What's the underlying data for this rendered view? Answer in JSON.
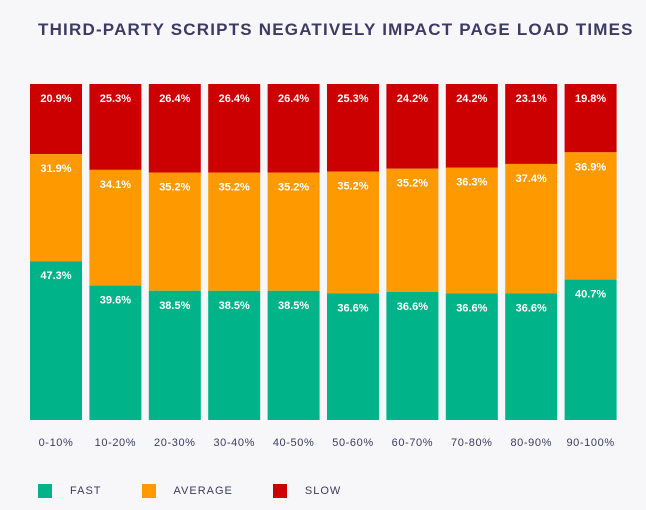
{
  "chart_data": {
    "type": "stacked-bar",
    "title": "THIRD-PARTY SCRIPTS NEGATIVELY IMPACT PAGE LOAD TIMES",
    "categories": [
      "0-10%",
      "10-20%",
      "20-30%",
      "30-40%",
      "40-50%",
      "50-60%",
      "60-70%",
      "70-80%",
      "80-90%",
      "90-100%"
    ],
    "series": [
      {
        "name": "FAST",
        "color": "#00b388",
        "values": [
          47.3,
          39.6,
          38.5,
          38.5,
          38.5,
          36.6,
          36.6,
          36.6,
          36.6,
          40.7
        ]
      },
      {
        "name": "AVERAGE",
        "color": "#ff9900",
        "values": [
          31.9,
          34.1,
          35.2,
          35.2,
          35.2,
          35.2,
          35.2,
          36.3,
          37.4,
          36.9
        ]
      },
      {
        "name": "SLOW",
        "color": "#cc0000",
        "values": [
          20.9,
          25.3,
          26.4,
          26.4,
          26.4,
          25.3,
          24.2,
          24.2,
          23.1,
          19.8
        ]
      }
    ],
    "value_suffix": "%",
    "legend": "bottom",
    "grid": false,
    "ylim": [
      0,
      100
    ]
  },
  "colors": {
    "fast": "#00b388",
    "average": "#ff9900",
    "slow": "#cc0000",
    "text": "#3d3a63"
  }
}
